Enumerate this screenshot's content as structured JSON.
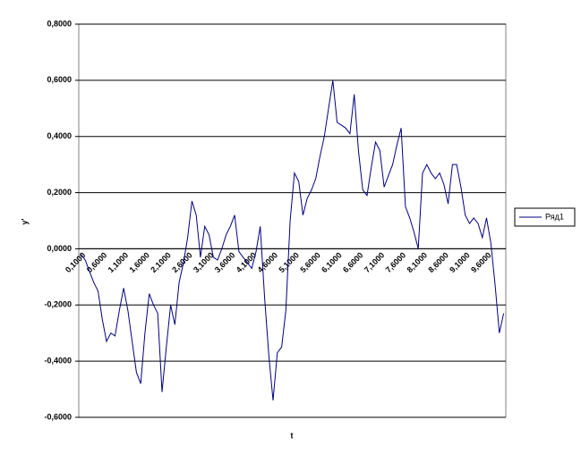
{
  "chart_data": {
    "type": "line",
    "x_label": "t",
    "y_label": "y'",
    "categories": [
      "0,1000",
      null,
      null,
      null,
      null,
      "0,6000",
      null,
      null,
      null,
      null,
      "1,1000",
      null,
      null,
      null,
      null,
      "1,6000",
      null,
      null,
      null,
      null,
      "2,1000",
      null,
      null,
      null,
      null,
      "2,6000",
      null,
      null,
      null,
      null,
      "3,1000",
      null,
      null,
      null,
      null,
      "3,6000",
      null,
      null,
      null,
      null,
      "4,1000",
      null,
      null,
      null,
      null,
      "4,6000",
      null,
      null,
      null,
      null,
      "5,1000",
      null,
      null,
      null,
      null,
      "5,6000",
      null,
      null,
      null,
      null,
      "6,1000",
      null,
      null,
      null,
      null,
      "6,6000",
      null,
      null,
      null,
      null,
      "7,1000",
      null,
      null,
      null,
      null,
      "7,6000",
      null,
      null,
      null,
      null,
      "8,1000",
      null,
      null,
      null,
      null,
      "8,6000",
      null,
      null,
      null,
      null,
      "9,1000",
      null,
      null,
      null,
      null,
      "9,6000",
      null,
      null,
      null,
      null
    ],
    "series": [
      {
        "name": "Ряд1",
        "color": "#000080",
        "values": [
          -0.02,
          -0.04,
          -0.08,
          -0.12,
          -0.15,
          -0.25,
          -0.33,
          -0.3,
          -0.31,
          -0.22,
          -0.14,
          -0.22,
          -0.33,
          -0.44,
          -0.48,
          -0.3,
          -0.16,
          -0.2,
          -0.23,
          -0.51,
          -0.35,
          -0.2,
          -0.27,
          -0.12,
          -0.05,
          0.04,
          0.17,
          0.12,
          -0.03,
          0.08,
          0.05,
          -0.03,
          -0.04,
          0.0,
          0.05,
          0.08,
          0.12,
          -0.01,
          -0.03,
          -0.05,
          -0.07,
          -0.01,
          0.08,
          -0.17,
          -0.38,
          -0.54,
          -0.37,
          -0.35,
          -0.22,
          0.1,
          0.27,
          0.24,
          0.12,
          0.18,
          0.21,
          0.25,
          0.33,
          0.4,
          0.5,
          0.6,
          0.45,
          0.44,
          0.43,
          0.41,
          0.55,
          0.35,
          0.21,
          0.19,
          0.29,
          0.38,
          0.35,
          0.22,
          0.26,
          0.3,
          0.37,
          0.43,
          0.15,
          0.11,
          0.06,
          0.0,
          0.27,
          0.3,
          0.27,
          0.25,
          0.27,
          0.23,
          0.16,
          0.3,
          0.3,
          0.22,
          0.12,
          0.09,
          0.11,
          0.09,
          0.04,
          0.11,
          0.02,
          -0.13,
          -0.3,
          -0.23
        ]
      }
    ],
    "ylim": [
      -0.6,
      0.8
    ],
    "yticks": [
      {
        "value": -0.6,
        "label": "-0,6000"
      },
      {
        "value": -0.4,
        "label": "-0,4000"
      },
      {
        "value": -0.2,
        "label": "-0,2000"
      },
      {
        "value": 0,
        "label": "0,0000"
      },
      {
        "value": 0.2,
        "label": "0,2000"
      },
      {
        "value": 0.4,
        "label": "0,4000"
      },
      {
        "value": 0.6,
        "label": "0,6000"
      },
      {
        "value": 0.8,
        "label": "0,8000"
      }
    ],
    "grid": true,
    "legend": "right"
  }
}
